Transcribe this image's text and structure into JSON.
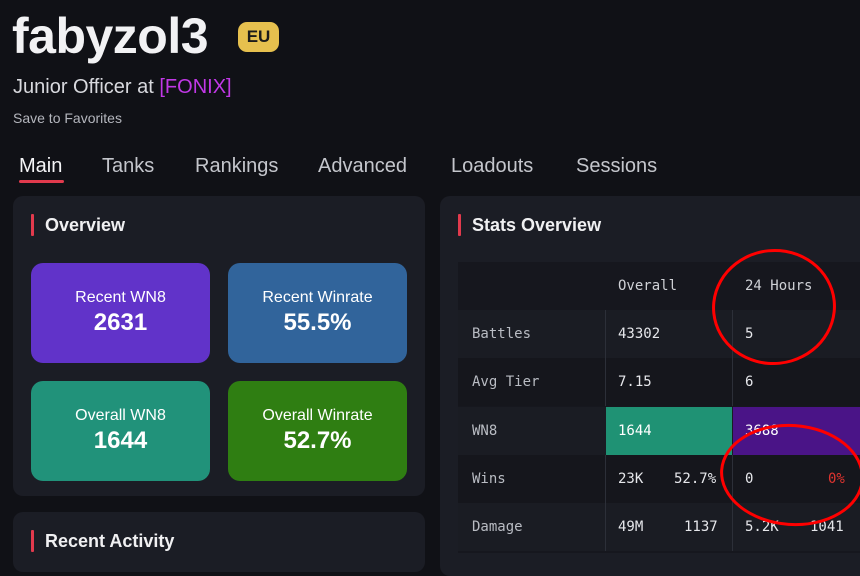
{
  "profile": {
    "name": "fabyzol3",
    "region": "EU",
    "rank_prefix": "Junior Officer at ",
    "clan": "[FONIX]",
    "favorite_label": "Save to Favorites"
  },
  "tabs": [
    "Main",
    "Tanks",
    "Rankings",
    "Advanced",
    "Loadouts",
    "Sessions"
  ],
  "overview": {
    "title": "Overview",
    "cards": [
      {
        "label": "Recent WN8",
        "value": "2631",
        "color": "#6133c9"
      },
      {
        "label": "Recent Winrate",
        "value": "55.5%",
        "color": "#31649b"
      },
      {
        "label": "Overall WN8",
        "value": "1644",
        "color": "#21927a"
      },
      {
        "label": "Overall Winrate",
        "value": "52.7%",
        "color": "#2f7e12"
      }
    ]
  },
  "recent_activity": {
    "title": "Recent Activity"
  },
  "stats": {
    "title": "Stats Overview",
    "headers": [
      "Overall",
      "24 Hours"
    ],
    "rows": [
      {
        "label": "Battles",
        "overall": "43302",
        "day": "5"
      },
      {
        "label": "Avg Tier",
        "overall": "7.15",
        "day": "6"
      },
      {
        "label": "WN8",
        "overall": "1644",
        "day": "3688",
        "overall_color": "#1f9274",
        "day_color": "#4a1487"
      },
      {
        "label": "Wins",
        "overall": "23K",
        "overall_sub": "52.7%",
        "day": "0",
        "day_sub": "0%"
      },
      {
        "label": "Damage",
        "overall": "49M",
        "overall_sub": "1137",
        "day": "5.2K",
        "day_sub": "1041"
      }
    ]
  },
  "colors": {
    "accent": "#e23a4d",
    "clan": "#c138e6",
    "annotation": "#ff0000",
    "negative": "#e0342f"
  }
}
